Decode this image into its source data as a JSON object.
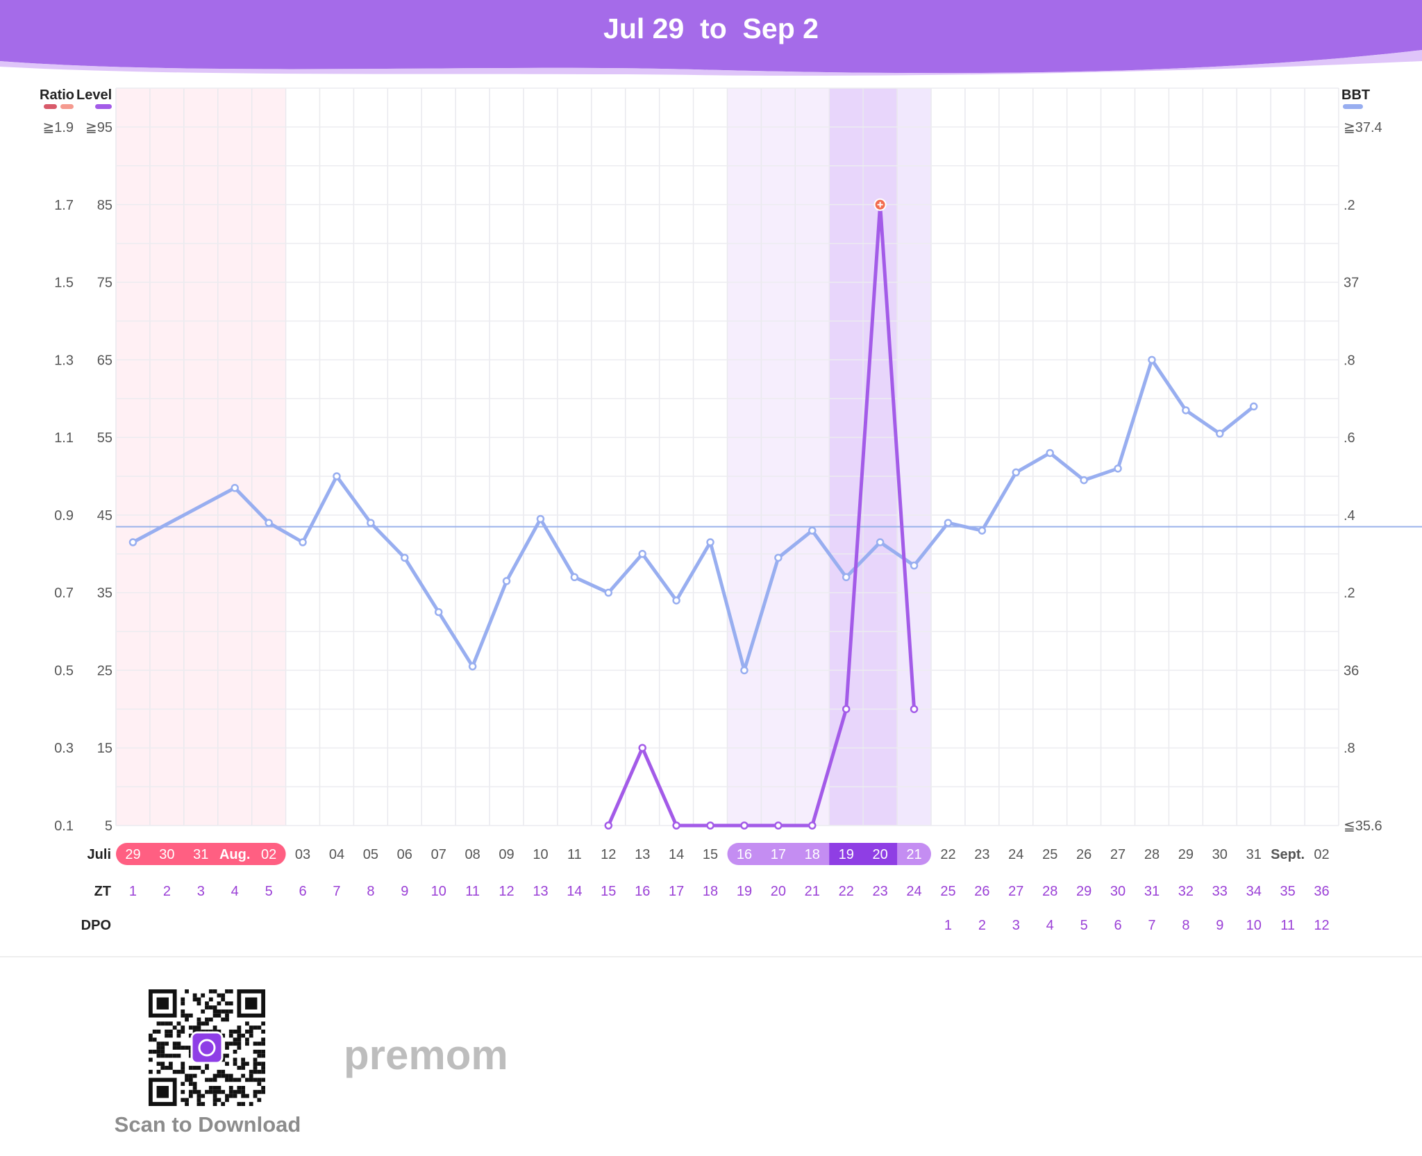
{
  "header": {
    "title": "Jul 29  to  Sep 2"
  },
  "chart_data": {
    "type": "line",
    "left_axis_heads": [
      "Ratio",
      "Level"
    ],
    "right_axis_head": "BBT",
    "ratio_ticks": [
      "≧1.9",
      "1.7",
      "1.5",
      "1.3",
      "1.1",
      "0.9",
      "0.7",
      "0.5",
      "0.3",
      "0.1"
    ],
    "level_ticks": [
      "≧95",
      "85",
      "75",
      "65",
      "55",
      "45",
      "35",
      "25",
      "15",
      "5"
    ],
    "bbt_ticks": [
      "≧37.4",
      ".2",
      "37",
      ".8",
      ".6",
      ".4",
      ".2",
      "36",
      ".8",
      "≦35.6"
    ],
    "level_range": [
      5,
      95
    ],
    "bbt_range": [
      35.6,
      37.4
    ],
    "bbt_coverline": 36.37,
    "date_row_label": "Juli",
    "dates": [
      "29",
      "30",
      "31",
      "Aug.",
      "02",
      "03",
      "04",
      "05",
      "06",
      "07",
      "08",
      "09",
      "10",
      "11",
      "12",
      "13",
      "14",
      "15",
      "16",
      "17",
      "18",
      "19",
      "20",
      "21",
      "22",
      "23",
      "24",
      "25",
      "26",
      "27",
      "28",
      "29",
      "30",
      "31",
      "Sept.",
      "02"
    ],
    "zt_label": "ZT",
    "zt": [
      "1",
      "2",
      "3",
      "4",
      "5",
      "6",
      "7",
      "8",
      "9",
      "10",
      "11",
      "12",
      "13",
      "14",
      "15",
      "16",
      "17",
      "18",
      "19",
      "20",
      "21",
      "22",
      "23",
      "24",
      "25",
      "26",
      "27",
      "28",
      "29",
      "30",
      "31",
      "32",
      "33",
      "34",
      "35",
      "36"
    ],
    "dpo_label": "DPO",
    "dpo": [
      "",
      "",
      "",
      "",
      "",
      "",
      "",
      "",
      "",
      "",
      "",
      "",
      "",
      "",
      "",
      "",
      "",
      "",
      "",
      "",
      "",
      "",
      "",
      "",
      "1",
      "2",
      "3",
      "4",
      "5",
      "6",
      "7",
      "8",
      "9",
      "10",
      "11",
      "12"
    ],
    "period_days": [
      1,
      5
    ],
    "fertile_low_days": [
      19,
      21
    ],
    "fertile_high_days": [
      22,
      23
    ],
    "fertile_post_days": [
      24,
      24
    ],
    "peak_day": 23,
    "series": [
      {
        "name": "BBT",
        "color": "#98aef0",
        "values": [
          36.33,
          null,
          null,
          36.47,
          36.38,
          36.33,
          36.5,
          36.38,
          36.29,
          36.15,
          36.01,
          36.23,
          36.39,
          36.24,
          36.2,
          36.3,
          36.18,
          36.33,
          36.0,
          36.29,
          36.36,
          36.24,
          36.33,
          36.27,
          36.38,
          36.36,
          36.51,
          36.56,
          36.49,
          36.52,
          36.8,
          36.67,
          36.61,
          36.68,
          null,
          null
        ]
      },
      {
        "name": "Level",
        "color": "#a35be8",
        "values": [
          null,
          null,
          null,
          null,
          null,
          null,
          null,
          null,
          null,
          null,
          null,
          null,
          null,
          null,
          5,
          15,
          5,
          5,
          5,
          5,
          5,
          20,
          85,
          20,
          null,
          null,
          null,
          null,
          null,
          null,
          null,
          null,
          null,
          null,
          null,
          null
        ]
      }
    ],
    "colors": {
      "header": "#a76cec",
      "period": "#ff5f82",
      "period_bg": "#fff0f4",
      "fertile_low": "#c48df2",
      "fertile_high": "#8f3ee4",
      "bbt": "#98aef0",
      "level": "#a35be8",
      "peak_marker": "#f26b4e",
      "purple_text": "#9a3fd6"
    }
  },
  "footer": {
    "qr_icon": "qr-code-icon",
    "scan_label": "Scan to Download",
    "brand": "premom"
  }
}
